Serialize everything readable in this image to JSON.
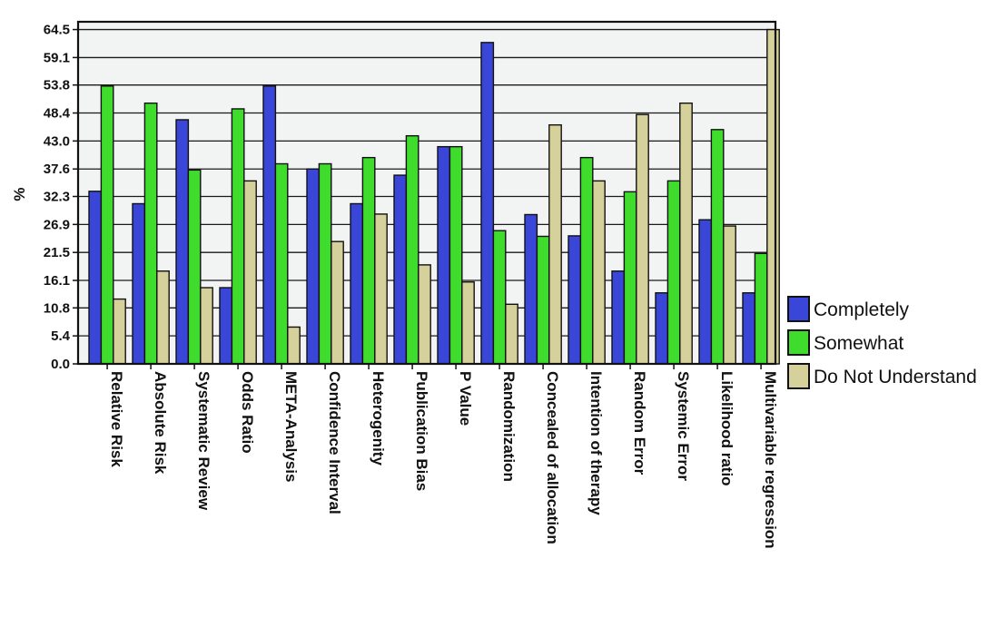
{
  "chart_data": {
    "type": "bar",
    "ylabel": "%",
    "xlabel": "",
    "title": "",
    "ylim": [
      0,
      66
    ],
    "yticks": [
      "0.0",
      "5.4",
      "10.8",
      "16.1",
      "21.5",
      "26.9",
      "32.3",
      "37.6",
      "43.0",
      "48.4",
      "53.8",
      "59.1",
      "64.5"
    ],
    "grid": true,
    "legend_position": "right",
    "categories": [
      "Relative Risk",
      "Absolute Risk",
      "Systematic Review",
      "Odds Ratio",
      "META-Analysis",
      "Confidence Interval",
      "Heterogenity",
      "Publication Bias",
      "P Value",
      "Randomization",
      "Concealed of allocation",
      "Intention of therapy",
      "Random Error",
      "Systemic Error",
      "Likelihood ratio",
      "Multivariable regression"
    ],
    "series": [
      {
        "name": "Completely",
        "color": "#3a46d8",
        "values": [
          33.3,
          30.9,
          47.1,
          14.7,
          53.6,
          37.6,
          30.9,
          36.4,
          41.9,
          62.0,
          28.8,
          24.7,
          17.9,
          13.7,
          27.8,
          13.7
        ]
      },
      {
        "name": "Somewhat",
        "color": "#3fdc2e",
        "values": [
          53.6,
          50.3,
          37.4,
          49.2,
          38.6,
          38.6,
          39.8,
          44.0,
          41.9,
          25.7,
          24.6,
          39.8,
          33.2,
          35.3,
          45.2,
          21.3
        ]
      },
      {
        "name": "Do Not Understand",
        "color": "#d6d09a",
        "values": [
          12.5,
          17.9,
          14.7,
          35.3,
          7.1,
          23.6,
          28.9,
          19.1,
          15.8,
          11.5,
          46.1,
          35.3,
          48.1,
          50.3,
          26.6,
          64.5
        ]
      }
    ]
  }
}
